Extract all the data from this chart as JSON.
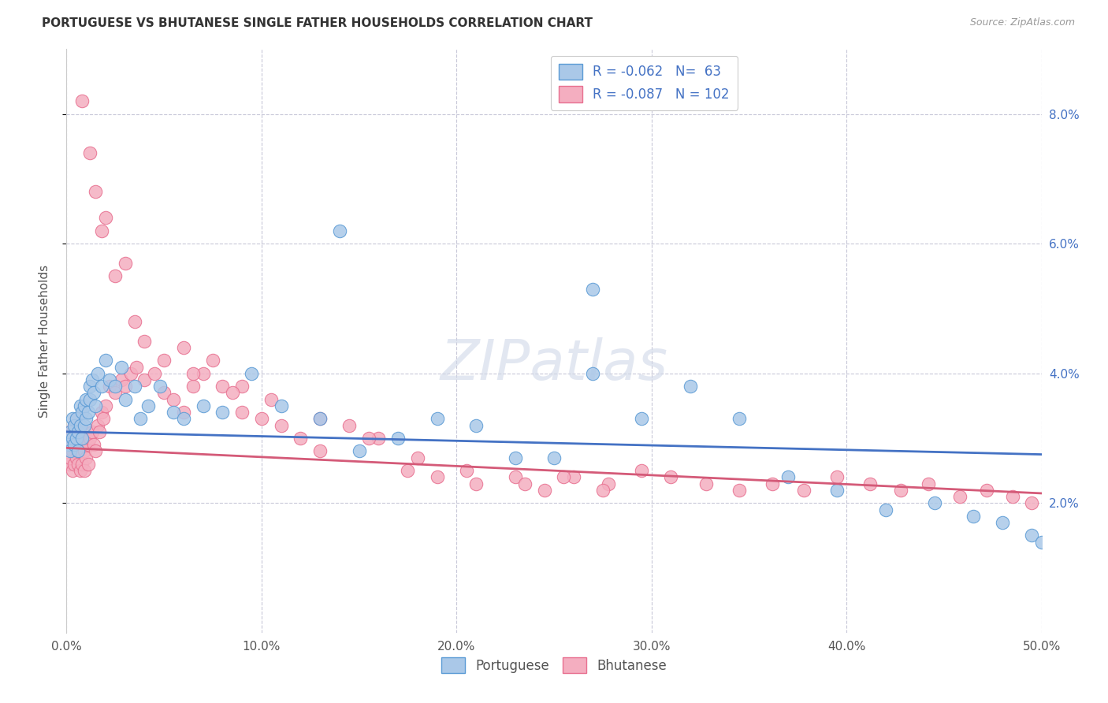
{
  "title": "PORTUGUESE VS BHUTANESE SINGLE FATHER HOUSEHOLDS CORRELATION CHART",
  "source": "Source: ZipAtlas.com",
  "ylabel": "Single Father Households",
  "xlim": [
    0.0,
    0.5
  ],
  "ylim": [
    0.0,
    0.09
  ],
  "blue_R": -0.062,
  "blue_N": 63,
  "pink_R": -0.087,
  "pink_N": 102,
  "blue_color": "#aac8e8",
  "pink_color": "#f4aec0",
  "blue_edge_color": "#5b9bd5",
  "pink_edge_color": "#e87090",
  "blue_line_color": "#4472c4",
  "pink_line_color": "#d45a78",
  "background_color": "#ffffff",
  "grid_color": "#c8c8d8",
  "watermark": "ZIPatlas",
  "blue_line_y0": 0.031,
  "blue_line_y1": 0.0275,
  "pink_line_y0": 0.0285,
  "pink_line_y1": 0.0215,
  "portuguese_x": [
    0.001,
    0.002,
    0.002,
    0.003,
    0.003,
    0.004,
    0.004,
    0.005,
    0.005,
    0.006,
    0.006,
    0.007,
    0.007,
    0.008,
    0.008,
    0.009,
    0.009,
    0.01,
    0.01,
    0.011,
    0.012,
    0.012,
    0.013,
    0.014,
    0.015,
    0.016,
    0.018,
    0.02,
    0.022,
    0.025,
    0.028,
    0.03,
    0.035,
    0.038,
    0.042,
    0.048,
    0.055,
    0.06,
    0.07,
    0.08,
    0.095,
    0.11,
    0.13,
    0.15,
    0.17,
    0.19,
    0.21,
    0.23,
    0.25,
    0.27,
    0.295,
    0.32,
    0.345,
    0.37,
    0.395,
    0.42,
    0.445,
    0.465,
    0.48,
    0.495,
    0.5,
    0.14,
    0.27
  ],
  "portuguese_y": [
    0.029,
    0.031,
    0.028,
    0.03,
    0.033,
    0.029,
    0.032,
    0.03,
    0.033,
    0.028,
    0.031,
    0.035,
    0.032,
    0.03,
    0.034,
    0.032,
    0.035,
    0.033,
    0.036,
    0.034,
    0.038,
    0.036,
    0.039,
    0.037,
    0.035,
    0.04,
    0.038,
    0.042,
    0.039,
    0.038,
    0.041,
    0.036,
    0.038,
    0.033,
    0.035,
    0.038,
    0.034,
    0.033,
    0.035,
    0.034,
    0.04,
    0.035,
    0.033,
    0.028,
    0.03,
    0.033,
    0.032,
    0.027,
    0.027,
    0.04,
    0.033,
    0.038,
    0.033,
    0.024,
    0.022,
    0.019,
    0.02,
    0.018,
    0.017,
    0.015,
    0.014,
    0.062,
    0.053
  ],
  "bhutanese_x": [
    0.001,
    0.001,
    0.002,
    0.002,
    0.003,
    0.003,
    0.003,
    0.004,
    0.004,
    0.004,
    0.005,
    0.005,
    0.005,
    0.006,
    0.006,
    0.006,
    0.007,
    0.007,
    0.007,
    0.008,
    0.008,
    0.009,
    0.009,
    0.009,
    0.01,
    0.01,
    0.011,
    0.011,
    0.012,
    0.013,
    0.014,
    0.015,
    0.016,
    0.017,
    0.018,
    0.019,
    0.02,
    0.022,
    0.025,
    0.028,
    0.03,
    0.033,
    0.036,
    0.04,
    0.045,
    0.05,
    0.055,
    0.06,
    0.065,
    0.07,
    0.08,
    0.09,
    0.1,
    0.11,
    0.12,
    0.13,
    0.145,
    0.16,
    0.175,
    0.19,
    0.21,
    0.23,
    0.245,
    0.26,
    0.278,
    0.295,
    0.31,
    0.328,
    0.345,
    0.362,
    0.378,
    0.395,
    0.412,
    0.428,
    0.442,
    0.458,
    0.472,
    0.485,
    0.495,
    0.04,
    0.06,
    0.075,
    0.09,
    0.105,
    0.02,
    0.03,
    0.008,
    0.012,
    0.015,
    0.018,
    0.025,
    0.035,
    0.05,
    0.065,
    0.085,
    0.13,
    0.155,
    0.18,
    0.205,
    0.235,
    0.255,
    0.275
  ],
  "bhutanese_y": [
    0.026,
    0.029,
    0.027,
    0.031,
    0.025,
    0.028,
    0.031,
    0.026,
    0.029,
    0.032,
    0.027,
    0.03,
    0.033,
    0.026,
    0.028,
    0.031,
    0.025,
    0.028,
    0.031,
    0.026,
    0.029,
    0.025,
    0.028,
    0.031,
    0.027,
    0.03,
    0.026,
    0.029,
    0.03,
    0.031,
    0.029,
    0.028,
    0.032,
    0.031,
    0.034,
    0.033,
    0.035,
    0.038,
    0.037,
    0.039,
    0.038,
    0.04,
    0.041,
    0.039,
    0.04,
    0.037,
    0.036,
    0.034,
    0.038,
    0.04,
    0.038,
    0.034,
    0.033,
    0.032,
    0.03,
    0.028,
    0.032,
    0.03,
    0.025,
    0.024,
    0.023,
    0.024,
    0.022,
    0.024,
    0.023,
    0.025,
    0.024,
    0.023,
    0.022,
    0.023,
    0.022,
    0.024,
    0.023,
    0.022,
    0.023,
    0.021,
    0.022,
    0.021,
    0.02,
    0.045,
    0.044,
    0.042,
    0.038,
    0.036,
    0.064,
    0.057,
    0.082,
    0.074,
    0.068,
    0.062,
    0.055,
    0.048,
    0.042,
    0.04,
    0.037,
    0.033,
    0.03,
    0.027,
    0.025,
    0.023,
    0.024,
    0.022
  ]
}
